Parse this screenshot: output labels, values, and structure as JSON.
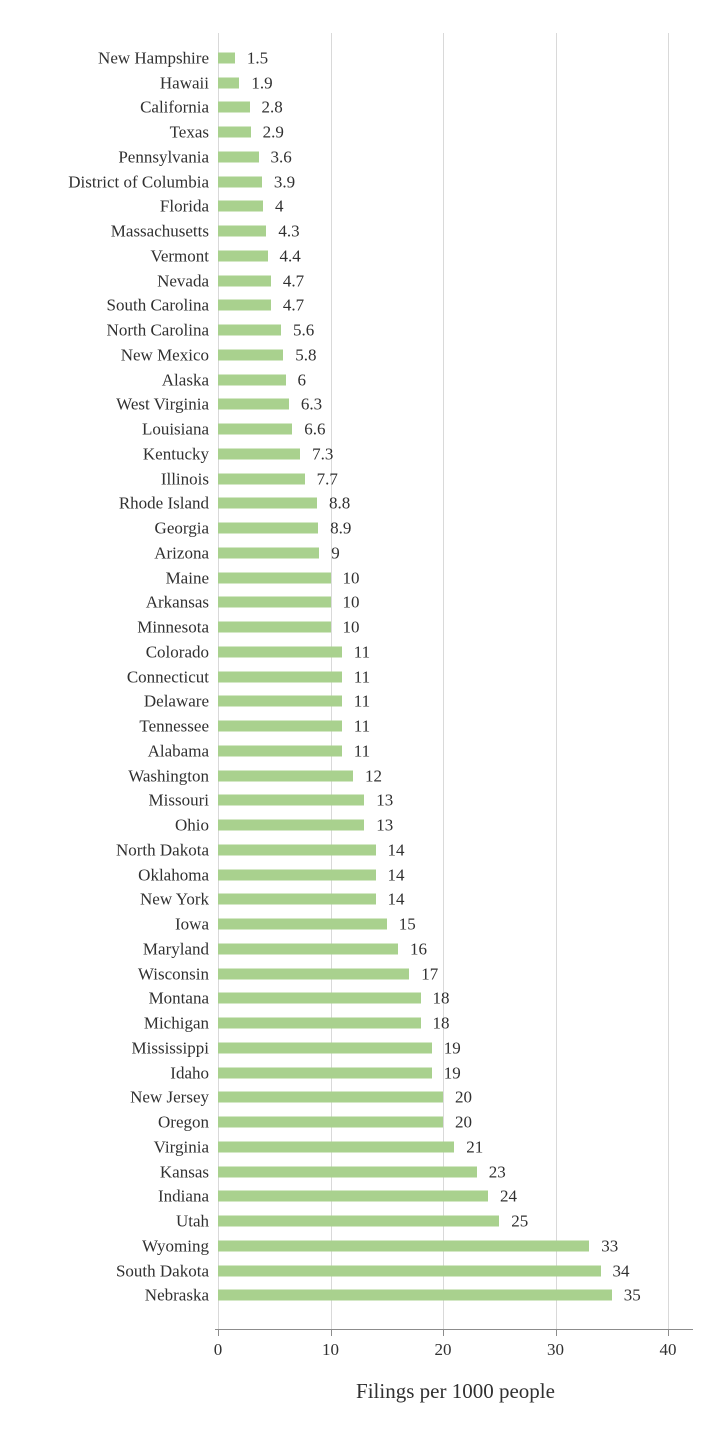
{
  "chart_data": {
    "type": "bar",
    "orientation": "horizontal",
    "title": "",
    "xlabel": "Filings per 1000 people",
    "ylabel": "",
    "xlim": [
      0,
      42
    ],
    "x_ticks": [
      "0",
      "10",
      "20",
      "30",
      "40"
    ],
    "grid": true,
    "legend": false,
    "bar_color": "#a9d18e",
    "gridline_color": "#d9d9d9",
    "axis_color": "#8c8c8c",
    "text_color": "#303030",
    "categories": [
      "New Hampshire",
      "Hawaii",
      "California",
      "Texas",
      "Pennsylvania",
      "District of Columbia",
      "Florida",
      "Massachusetts",
      "Vermont",
      "Nevada",
      "South Carolina",
      "North Carolina",
      "New Mexico",
      "Alaska",
      "West Virginia",
      "Louisiana",
      "Kentucky",
      "Illinois",
      "Rhode Island",
      "Georgia",
      "Arizona",
      "Maine",
      "Arkansas",
      "Minnesota",
      "Colorado",
      "Connecticut",
      "Delaware",
      "Tennessee",
      "Alabama",
      "Washington",
      "Missouri",
      "Ohio",
      "North Dakota",
      "Oklahoma",
      "New York",
      "Iowa",
      "Maryland",
      "Wisconsin",
      "Montana",
      "Michigan",
      "Mississippi",
      "Idaho",
      "New Jersey",
      "Oregon",
      "Virginia",
      "Kansas",
      "Indiana",
      "Utah",
      "Wyoming",
      "South Dakota",
      "Nebraska"
    ],
    "values": [
      1.5,
      1.9,
      2.8,
      2.9,
      3.6,
      3.9,
      4,
      4.3,
      4.4,
      4.7,
      4.7,
      5.6,
      5.8,
      6,
      6.3,
      6.6,
      7.3,
      7.7,
      8.8,
      8.9,
      9,
      10,
      10,
      10,
      11,
      11,
      11,
      11,
      11,
      12,
      13,
      13,
      14,
      14,
      14,
      15,
      16,
      17,
      18,
      18,
      19,
      19,
      20,
      20,
      21,
      23,
      24,
      25,
      33,
      34,
      35
    ],
    "value_labels": [
      "1.5",
      "1.9",
      "2.8",
      "2.9",
      "3.6",
      "3.9",
      "4",
      "4.3",
      "4.4",
      "4.7",
      "4.7",
      "5.6",
      "5.8",
      "6",
      "6.3",
      "6.6",
      "7.3",
      "7.7",
      "8.8",
      "8.9",
      "9",
      "10",
      "10",
      "10",
      "11",
      "11",
      "11",
      "11",
      "11",
      "12",
      "13",
      "13",
      "14",
      "14",
      "14",
      "15",
      "16",
      "17",
      "18",
      "18",
      "19",
      "19",
      "20",
      "20",
      "21",
      "23",
      "24",
      "25",
      "33",
      "34",
      "35"
    ]
  }
}
